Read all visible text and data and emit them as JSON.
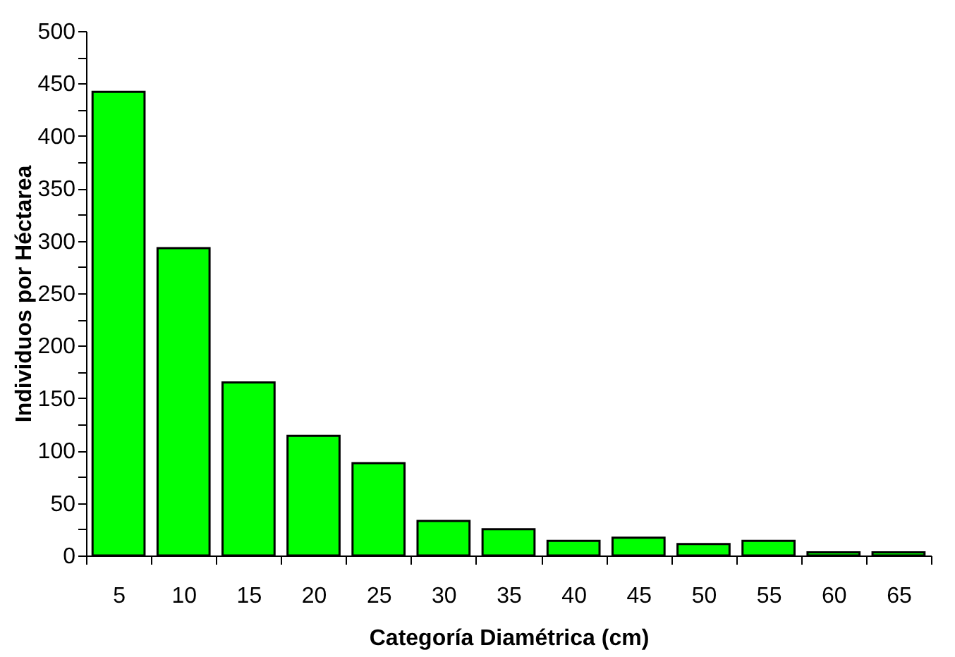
{
  "chart_data": {
    "type": "bar",
    "xlabel": "Categoría Diamétrica (cm)",
    "ylabel": "Individuos por Héctarea",
    "categories": [
      "5",
      "10",
      "15",
      "20",
      "25",
      "30",
      "35",
      "40",
      "45",
      "50",
      "55",
      "60",
      "65"
    ],
    "values": [
      442,
      293,
      165,
      114,
      88,
      33,
      25,
      14,
      17,
      11,
      14,
      3,
      3
    ],
    "color": "#00ff00",
    "ylim": [
      0,
      500
    ],
    "yticks": [
      0,
      {
        "value": 25,
        "label": null
      },
      50,
      {
        "value": 75,
        "label": null
      },
      100,
      {
        "value": 125,
        "label": null
      },
      150,
      {
        "value": 175,
        "label": null
      },
      200,
      {
        "value": 225,
        "label": null
      },
      250,
      {
        "value": 275,
        "label": null
      },
      300,
      {
        "value": 325,
        "label": null
      },
      350,
      {
        "value": 375,
        "label": null
      },
      400,
      {
        "value": 425,
        "label": null
      },
      450,
      {
        "value": 475,
        "label": null
      },
      500
    ],
    "grid": false
  }
}
